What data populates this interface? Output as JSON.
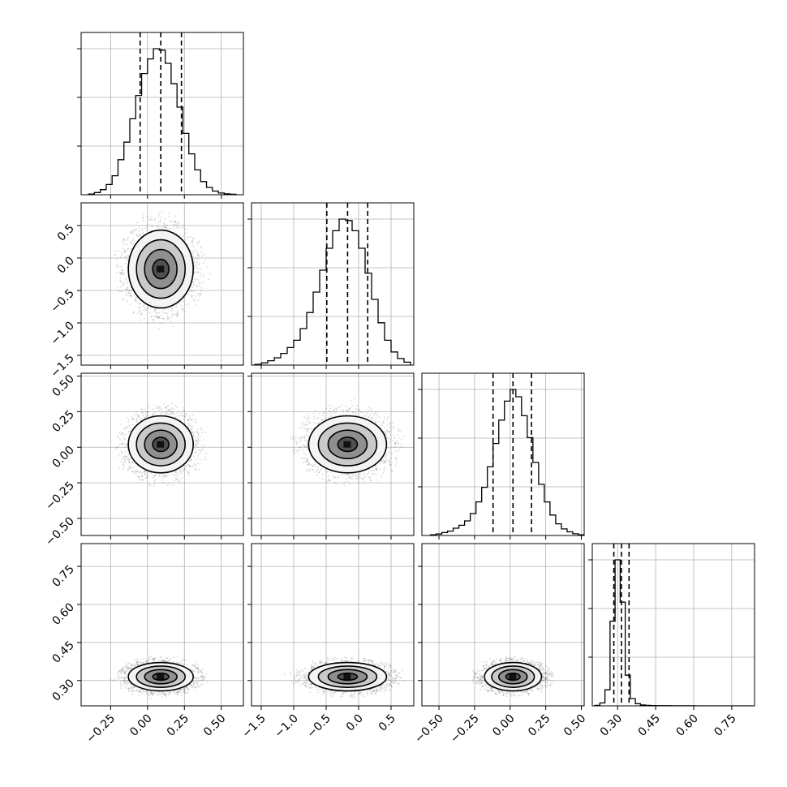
{
  "chart_data": {
    "type": "corner",
    "title": "",
    "parameters": [
      {
        "name": "",
        "range": [
          -0.45,
          0.65
        ],
        "ticks": [
          -0.25,
          0.0,
          0.25,
          0.5
        ],
        "tick_labels": [
          "−0.25",
          "0.00",
          "0.25",
          "0.50"
        ],
        "quantiles": [
          -0.05,
          0.09,
          0.23
        ],
        "hist_bins": [
          -0.4,
          -0.36,
          -0.32,
          -0.28,
          -0.24,
          -0.2,
          -0.16,
          -0.12,
          -0.08,
          -0.04,
          0.0,
          0.04,
          0.08,
          0.12,
          0.16,
          0.2,
          0.24,
          0.28,
          0.32,
          0.36,
          0.4,
          0.44,
          0.48,
          0.52,
          0.56,
          0.6
        ],
        "hist_heights": [
          0.5,
          1.5,
          3.5,
          7,
          13,
          24,
          36,
          52,
          68,
          83,
          93,
          100,
          99,
          90,
          76,
          60,
          42,
          28,
          17,
          9,
          5,
          2.5,
          1.2,
          0.6,
          0.3
        ]
      },
      {
        "name": "",
        "range": [
          -1.65,
          0.85
        ],
        "ticks": [
          -1.5,
          -1.0,
          -0.5,
          0.0,
          0.5
        ],
        "tick_labels": [
          "−1.5",
          "−1.0",
          "−0.5",
          "0.0",
          "0.5"
        ],
        "quantiles": [
          -0.49,
          -0.17,
          0.14
        ],
        "hist_bins": [
          -1.6,
          -1.5,
          -1.4,
          -1.3,
          -1.2,
          -1.1,
          -1.0,
          -0.9,
          -0.8,
          -0.7,
          -0.6,
          -0.5,
          -0.4,
          -0.3,
          -0.2,
          -0.1,
          0.0,
          0.1,
          0.2,
          0.3,
          0.4,
          0.5,
          0.6,
          0.7,
          0.8
        ],
        "hist_heights": [
          0.5,
          1.5,
          3,
          5,
          8,
          12,
          17,
          25,
          36,
          50,
          65,
          80,
          92,
          100,
          99,
          92,
          80,
          63,
          45,
          29,
          17,
          9,
          4.5,
          2
        ]
      },
      {
        "name": "",
        "range": [
          -0.62,
          0.52
        ],
        "ticks": [
          -0.5,
          -0.25,
          0.0,
          0.25,
          0.5
        ],
        "tick_labels": [
          "−0.50",
          "−0.25",
          "0.00",
          "0.25",
          "0.50"
        ],
        "quantiles": [
          -0.12,
          0.02,
          0.15
        ],
        "hist_bins": [
          -0.56,
          -0.52,
          -0.48,
          -0.44,
          -0.4,
          -0.36,
          -0.32,
          -0.28,
          -0.24,
          -0.2,
          -0.16,
          -0.12,
          -0.08,
          -0.04,
          0.0,
          0.04,
          0.08,
          0.12,
          0.16,
          0.2,
          0.24,
          0.28,
          0.32,
          0.36,
          0.4,
          0.44,
          0.48,
          0.52
        ],
        "hist_heights": [
          0.5,
          1,
          2,
          3,
          5,
          7,
          10,
          15,
          23,
          33,
          47,
          63,
          79,
          92,
          100,
          95,
          82,
          67,
          50,
          35,
          23,
          14,
          8,
          4.5,
          2.5,
          1.2,
          0.5
        ]
      },
      {
        "name": "",
        "range": [
          0.2,
          0.84
        ],
        "ticks": [
          0.3,
          0.45,
          0.6,
          0.75
        ],
        "tick_labels": [
          "0.30",
          "0.45",
          "0.60",
          "0.75"
        ],
        "quantiles": [
          0.285,
          0.315,
          0.345
        ],
        "hist_bins": [
          0.21,
          0.23,
          0.25,
          0.27,
          0.29,
          0.31,
          0.33,
          0.35,
          0.37,
          0.39,
          0.41,
          0.43,
          0.45,
          0.47,
          0.49,
          0.51,
          0.53,
          0.55,
          0.57,
          0.59,
          0.61,
          0.63,
          0.65,
          0.67,
          0.69,
          0.71,
          0.73,
          0.75,
          0.77,
          0.79,
          0.81,
          0.83
        ],
        "hist_heights": [
          0.3,
          2,
          11,
          58,
          100,
          71,
          21,
          5,
          1.5,
          0.6,
          0.3,
          0.2,
          0.1,
          0.1,
          0.1,
          0.05,
          0.05,
          0.05,
          0.03,
          0.03,
          0.02,
          0.02,
          0.01,
          0.01,
          0.01,
          0.01,
          0.01,
          0.01,
          0.005,
          0.005,
          0.005
        ]
      }
    ],
    "joint": {
      "centers": {
        "1-0": [
          0.09,
          -0.17
        ],
        "2-0": [
          0.09,
          0.02
        ],
        "2-1": [
          -0.17,
          0.02
        ],
        "3-0": [
          0.09,
          0.315
        ],
        "3-1": [
          -0.17,
          0.315
        ],
        "3-2": [
          0.02,
          0.315
        ]
      },
      "sigma": [
        0.11,
        0.3,
        0.1,
        0.028
      ],
      "contour_levels_sigma": [
        0.5,
        1.0,
        1.5,
        2.0
      ],
      "grid": true
    }
  }
}
